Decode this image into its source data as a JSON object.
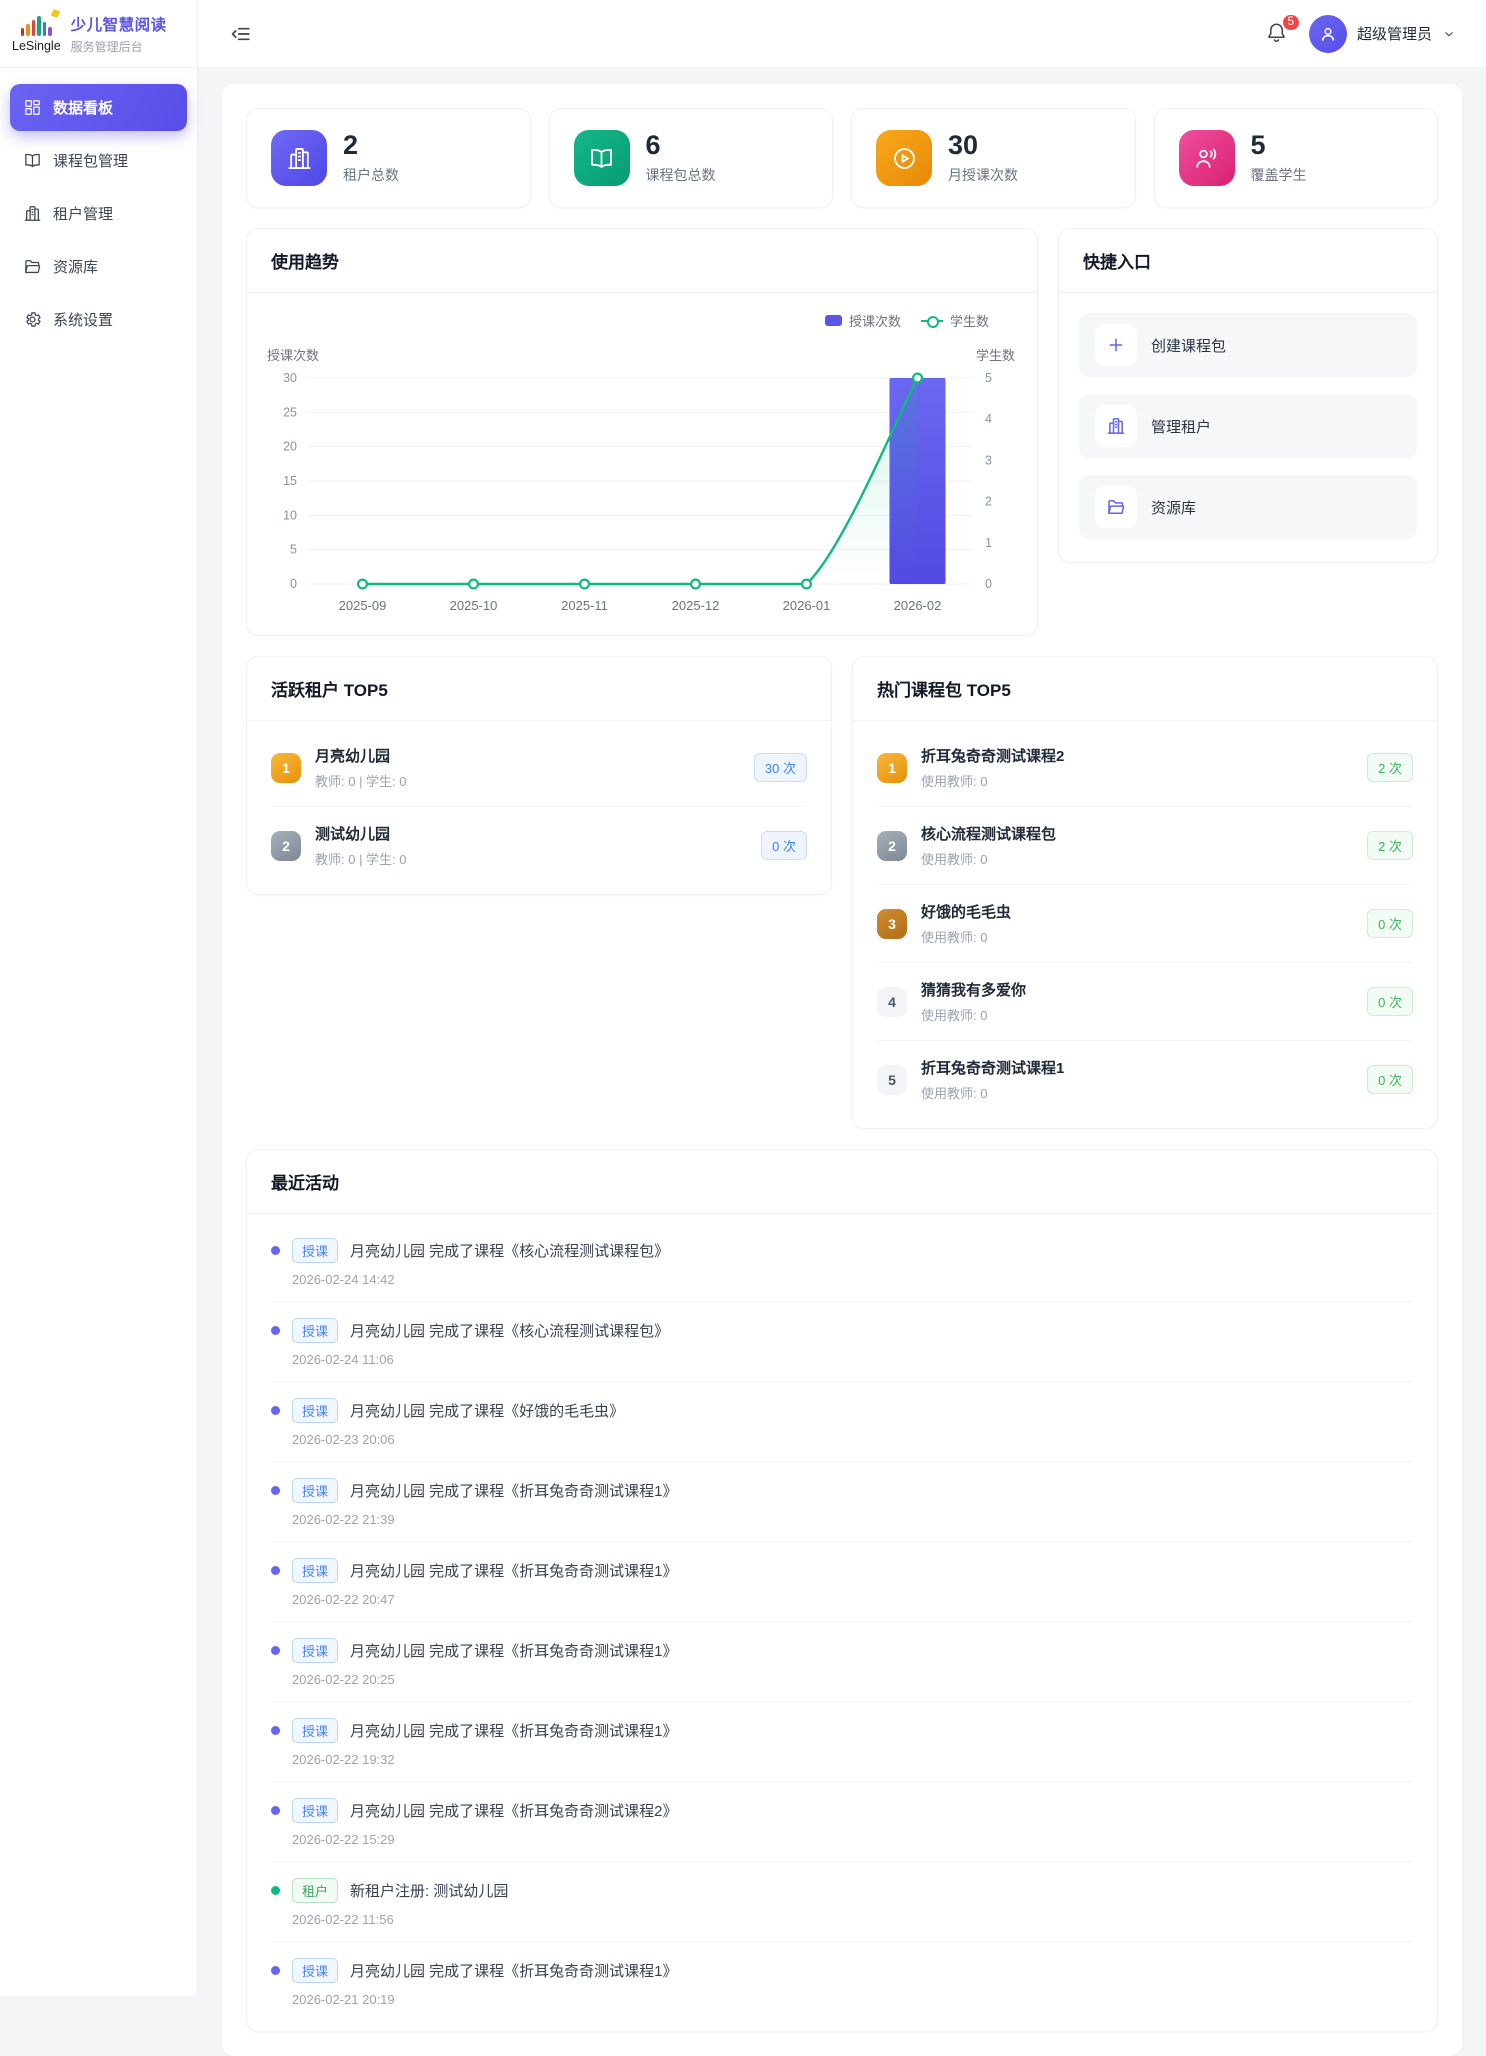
{
  "brand": {
    "logo": "LeSingle",
    "title": "少儿智慧阅读",
    "subtitle": "服务管理后台"
  },
  "header": {
    "notification_count": "5",
    "user_name": "超级管理员"
  },
  "sidebar": {
    "items": [
      {
        "key": "dashboard",
        "label": "数据看板",
        "icon": "dashboard-icon",
        "active": true
      },
      {
        "key": "course-packages",
        "label": "课程包管理",
        "icon": "book-icon",
        "active": false
      },
      {
        "key": "tenants",
        "label": "租户管理",
        "icon": "building-icon",
        "active": false
      },
      {
        "key": "resources",
        "label": "资源库",
        "icon": "folder-icon",
        "active": false
      },
      {
        "key": "settings",
        "label": "系统设置",
        "icon": "gear-icon",
        "active": false
      }
    ]
  },
  "stats": [
    {
      "key": "tenants",
      "value": "2",
      "label": "租户总数",
      "icon": "building-icon",
      "color_from": "#6f6af3",
      "color_to": "#5046e5"
    },
    {
      "key": "course-packages",
      "value": "6",
      "label": "课程包总数",
      "icon": "book-icon",
      "color_from": "#14b88a",
      "color_to": "#089b72"
    },
    {
      "key": "monthly-lessons",
      "value": "30",
      "label": "月授课次数",
      "icon": "play-icon",
      "color_from": "#f7a91c",
      "color_to": "#e88906"
    },
    {
      "key": "students-covered",
      "value": "5",
      "label": "覆盖学生",
      "icon": "students-icon",
      "color_from": "#ef4f9b",
      "color_to": "#da2173"
    }
  ],
  "trend_panel": {
    "title": "使用趋势"
  },
  "chart_data": {
    "type": "bar",
    "categories": [
      "2025-09",
      "2025-10",
      "2025-11",
      "2025-12",
      "2026-01",
      "2026-02"
    ],
    "series": [
      {
        "name": "授课次数",
        "kind": "bar",
        "axis": "left",
        "values": [
          0,
          0,
          0,
          0,
          0,
          30
        ],
        "color": "#5a57e8"
      },
      {
        "name": "学生数",
        "kind": "line",
        "axis": "right",
        "values": [
          0,
          0,
          0,
          0,
          0,
          5
        ],
        "color": "#10b981"
      }
    ],
    "left_axis": {
      "title": "授课次数",
      "min": 0,
      "max": 30,
      "ticks": [
        0,
        5,
        10,
        15,
        20,
        25,
        30
      ]
    },
    "right_axis": {
      "title": "学生数",
      "min": 0,
      "max": 5,
      "ticks": [
        0,
        1,
        2,
        3,
        4,
        5
      ]
    },
    "legend_position": "top-right",
    "grid": true
  },
  "quick_panel": {
    "title": "快捷入口",
    "items": [
      {
        "key": "create-course-package",
        "label": "创建课程包",
        "icon": "plus-icon"
      },
      {
        "key": "manage-tenants",
        "label": "管理租户",
        "icon": "building-icon"
      },
      {
        "key": "resources",
        "label": "资源库",
        "icon": "folder-icon"
      }
    ]
  },
  "active_tenants": {
    "title": "活跃租户 TOP5",
    "chip_style": "blue",
    "items": [
      {
        "rank": "1",
        "name": "月亮幼儿园",
        "meta": "教师: 0 | 学生: 0",
        "count": "30 次"
      },
      {
        "rank": "2",
        "name": "测试幼儿园",
        "meta": "教师: 0 | 学生: 0",
        "count": "0 次"
      }
    ]
  },
  "hot_packages": {
    "title": "热门课程包 TOP5",
    "chip_style": "green",
    "items": [
      {
        "rank": "1",
        "name": "折耳兔奇奇测试课程2",
        "meta": "使用教师: 0",
        "count": "2 次"
      },
      {
        "rank": "2",
        "name": "核心流程测试课程包",
        "meta": "使用教师: 0",
        "count": "2 次"
      },
      {
        "rank": "3",
        "name": "好饿的毛毛虫",
        "meta": "使用教师: 0",
        "count": "0 次"
      },
      {
        "rank": "4",
        "name": "猜猜我有多爱你",
        "meta": "使用教师: 0",
        "count": "0 次"
      },
      {
        "rank": "5",
        "name": "折耳兔奇奇测试课程1",
        "meta": "使用教师: 0",
        "count": "0 次"
      }
    ]
  },
  "activities": {
    "title": "最近活动",
    "items": [
      {
        "tag": "授课",
        "style": "blue",
        "text": "月亮幼儿园 完成了课程《核心流程测试课程包》",
        "time": "2026-02-24 14:42"
      },
      {
        "tag": "授课",
        "style": "blue",
        "text": "月亮幼儿园 完成了课程《核心流程测试课程包》",
        "time": "2026-02-24 11:06"
      },
      {
        "tag": "授课",
        "style": "blue",
        "text": "月亮幼儿园 完成了课程《好饿的毛毛虫》",
        "time": "2026-02-23 20:06"
      },
      {
        "tag": "授课",
        "style": "blue",
        "text": "月亮幼儿园 完成了课程《折耳兔奇奇测试课程1》",
        "time": "2026-02-22 21:39"
      },
      {
        "tag": "授课",
        "style": "blue",
        "text": "月亮幼儿园 完成了课程《折耳兔奇奇测试课程1》",
        "time": "2026-02-22 20:47"
      },
      {
        "tag": "授课",
        "style": "blue",
        "text": "月亮幼儿园 完成了课程《折耳兔奇奇测试课程1》",
        "time": "2026-02-22 20:25"
      },
      {
        "tag": "授课",
        "style": "blue",
        "text": "月亮幼儿园 完成了课程《折耳兔奇奇测试课程1》",
        "time": "2026-02-22 19:32"
      },
      {
        "tag": "授课",
        "style": "blue",
        "text": "月亮幼儿园 完成了课程《折耳兔奇奇测试课程2》",
        "time": "2026-02-22 15:29"
      },
      {
        "tag": "租户",
        "style": "green",
        "text": "新租户注册: 测试幼儿园",
        "time": "2026-02-22 11:56"
      },
      {
        "tag": "授课",
        "style": "blue",
        "text": "月亮幼儿园 完成了课程《折耳兔奇奇测试课程1》",
        "time": "2026-02-21 20:19"
      }
    ]
  },
  "colors": {
    "primary": "#584ee8",
    "bar": "#5a57e8",
    "line": "#10b981",
    "danger": "#ef4444"
  }
}
